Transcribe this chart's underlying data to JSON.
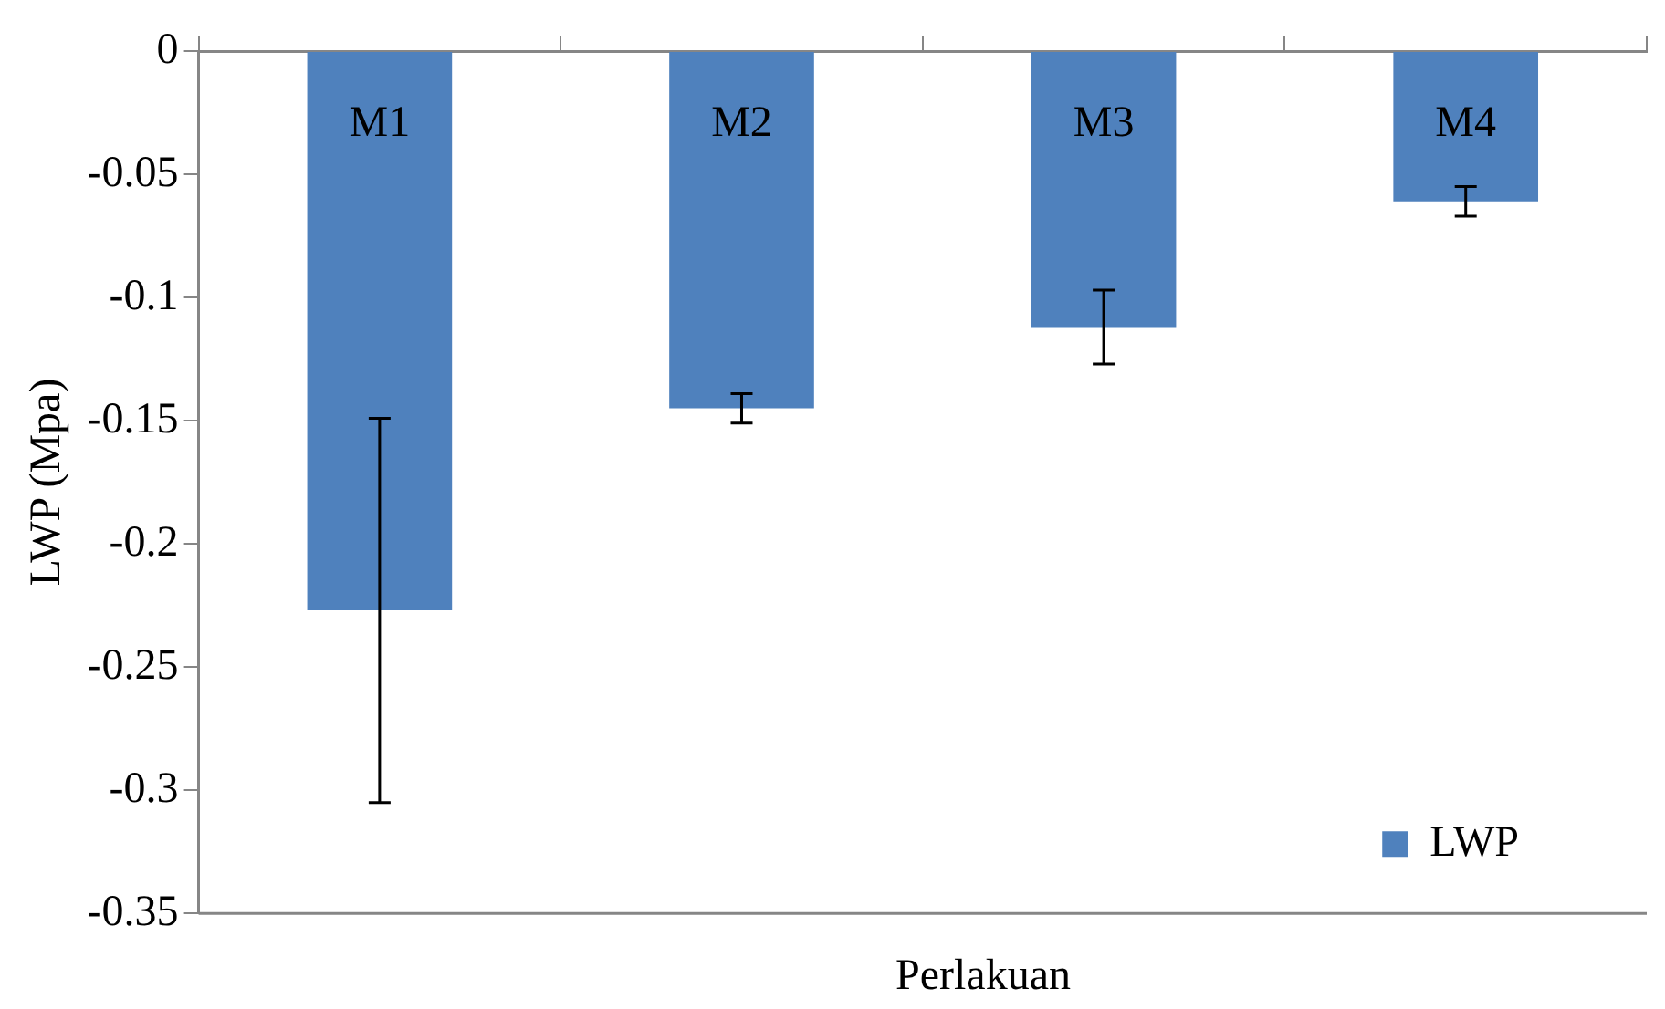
{
  "chart_data": {
    "type": "bar",
    "xlabel": "Perlakuan",
    "ylabel": "LWP (Mpa)",
    "categories": [
      "M1",
      "M2",
      "M3",
      "M4"
    ],
    "series": [
      {
        "name": "LWP",
        "color": "#4f81bd",
        "values": [
          -0.227,
          -0.145,
          -0.112,
          -0.061
        ],
        "errors": [
          0.078,
          0.006,
          0.015,
          0.006
        ]
      }
    ],
    "ylim": [
      -0.35,
      0
    ],
    "yticks": [
      0,
      -0.05,
      -0.1,
      -0.15,
      -0.2,
      -0.25,
      -0.3,
      -0.35
    ],
    "grid": false,
    "legend": "bottom right"
  }
}
